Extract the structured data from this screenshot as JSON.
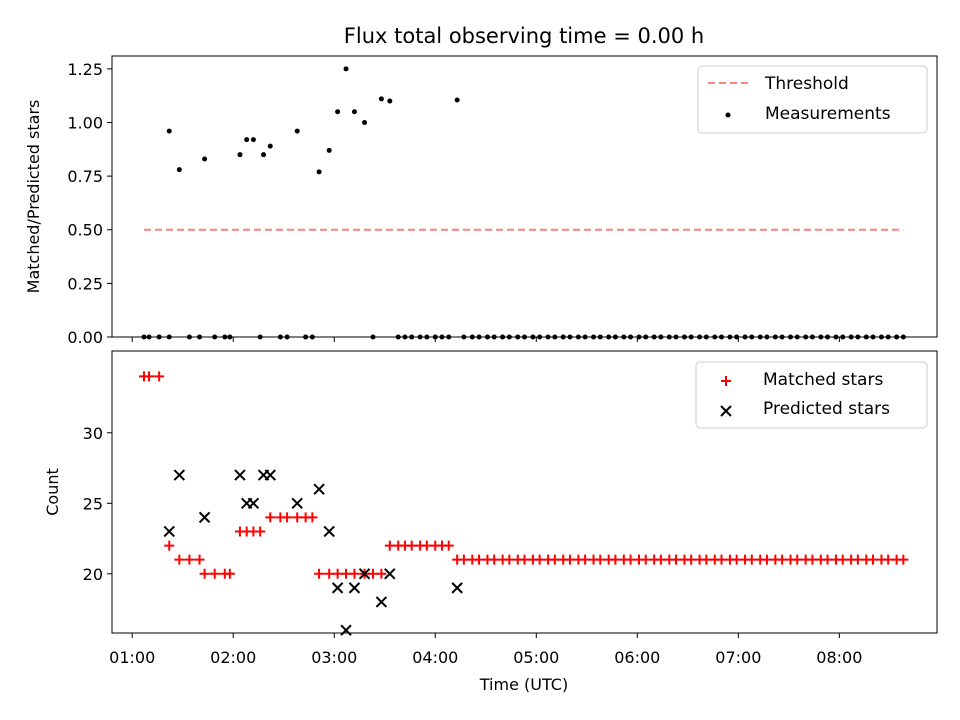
{
  "figure": {
    "title": "Flux total observing time = 0.00 h",
    "xlabel": "Time (UTC)"
  },
  "colors": {
    "threshold": "#ff8080",
    "measurement": "#000000",
    "matched": "#ff0000",
    "predicted": "#000000",
    "axes": "#000000",
    "background": "#ffffff"
  },
  "chart_data": [
    {
      "type": "scatter",
      "ylabel": "Matched/Predicted stars",
      "xlim": [
        "00:48",
        "08:58"
      ],
      "ylim": [
        0,
        1.31
      ],
      "yticks": [
        0.0,
        0.25,
        0.5,
        0.75,
        1.0,
        1.25
      ],
      "grid": false,
      "legend_position": "upper right",
      "threshold": {
        "name": "Threshold",
        "value": 0.5,
        "x_range": [
          "01:07",
          "08:38"
        ],
        "style": "dashed"
      },
      "series": [
        {
          "name": "Measurements",
          "marker": "dot",
          "points": [
            [
              "01:07",
              0
            ],
            [
              "01:10",
              0
            ],
            [
              "01:16",
              0
            ],
            [
              "01:22",
              0
            ],
            [
              "01:22",
              0.96
            ],
            [
              "01:28",
              0.78
            ],
            [
              "01:34",
              0
            ],
            [
              "01:40",
              0
            ],
            [
              "01:43",
              0.83
            ],
            [
              "01:49",
              0
            ],
            [
              "01:55",
              0
            ],
            [
              "01:58",
              0
            ],
            [
              "02:04",
              0.85
            ],
            [
              "02:08",
              0.92
            ],
            [
              "02:12",
              0.92
            ],
            [
              "02:16",
              0
            ],
            [
              "02:18",
              0.85
            ],
            [
              "02:22",
              0.89
            ],
            [
              "02:28",
              0
            ],
            [
              "02:32",
              0
            ],
            [
              "02:38",
              0.96
            ],
            [
              "02:43",
              0
            ],
            [
              "02:47",
              0
            ],
            [
              "02:51",
              0.77
            ],
            [
              "02:57",
              0.87
            ],
            [
              "03:02",
              1.05
            ],
            [
              "03:07",
              1.25
            ],
            [
              "03:12",
              1.05
            ],
            [
              "03:18",
              1.0
            ],
            [
              "03:23",
              0
            ],
            [
              "03:28",
              1.11
            ],
            [
              "03:33",
              1.1
            ],
            [
              "03:38",
              0
            ],
            [
              "03:42",
              0
            ],
            [
              "03:46",
              0
            ],
            [
              "03:51",
              0
            ],
            [
              "03:55",
              0
            ],
            [
              "04:00",
              0
            ],
            [
              "04:04",
              0
            ],
            [
              "04:08",
              0
            ],
            [
              "04:13",
              1.105
            ],
            [
              "04:17",
              0
            ],
            [
              "04:22",
              0
            ],
            [
              "04:26",
              0
            ],
            [
              "04:31",
              0
            ],
            [
              "04:35",
              0
            ],
            [
              "04:40",
              0
            ],
            [
              "04:44",
              0
            ],
            [
              "04:49",
              0
            ],
            [
              "04:53",
              0
            ],
            [
              "04:58",
              0
            ],
            [
              "05:02",
              0
            ],
            [
              "05:07",
              0
            ],
            [
              "05:11",
              0
            ],
            [
              "05:16",
              0
            ],
            [
              "05:20",
              0
            ],
            [
              "05:25",
              0
            ],
            [
              "05:29",
              0
            ],
            [
              "05:34",
              0
            ],
            [
              "05:38",
              0
            ],
            [
              "05:43",
              0
            ],
            [
              "05:47",
              0
            ],
            [
              "05:52",
              0
            ],
            [
              "05:56",
              0
            ],
            [
              "06:01",
              0
            ],
            [
              "06:05",
              0
            ],
            [
              "06:10",
              0
            ],
            [
              "06:14",
              0
            ],
            [
              "06:19",
              0
            ],
            [
              "06:23",
              0
            ],
            [
              "06:28",
              0
            ],
            [
              "06:32",
              0
            ],
            [
              "06:37",
              0
            ],
            [
              "06:41",
              0
            ],
            [
              "06:46",
              0
            ],
            [
              "06:50",
              0
            ],
            [
              "06:55",
              0
            ],
            [
              "06:59",
              0
            ],
            [
              "07:04",
              0
            ],
            [
              "07:08",
              0
            ],
            [
              "07:13",
              0
            ],
            [
              "07:17",
              0
            ],
            [
              "07:22",
              0
            ],
            [
              "07:26",
              0
            ],
            [
              "07:31",
              0
            ],
            [
              "07:35",
              0
            ],
            [
              "07:40",
              0
            ],
            [
              "07:44",
              0
            ],
            [
              "07:49",
              0
            ],
            [
              "07:53",
              0
            ],
            [
              "07:58",
              0
            ],
            [
              "08:02",
              0
            ],
            [
              "08:07",
              0
            ],
            [
              "08:11",
              0
            ],
            [
              "08:16",
              0
            ],
            [
              "08:20",
              0
            ],
            [
              "08:25",
              0
            ],
            [
              "08:29",
              0
            ],
            [
              "08:34",
              0
            ],
            [
              "08:38",
              0
            ]
          ]
        }
      ]
    },
    {
      "type": "scatter",
      "ylabel": "Count",
      "xlabel": "Time (UTC)",
      "xlim": [
        "00:48",
        "08:58"
      ],
      "ylim": [
        15.8,
        35.8
      ],
      "yticks": [
        20,
        25,
        30
      ],
      "xticks": [
        "01:00",
        "02:00",
        "03:00",
        "04:00",
        "05:00",
        "06:00",
        "07:00",
        "08:00"
      ],
      "grid": false,
      "legend_position": "upper right",
      "series": [
        {
          "name": "Matched stars",
          "marker": "plus",
          "points": [
            [
              "01:07",
              34
            ],
            [
              "01:10",
              34
            ],
            [
              "01:16",
              34
            ],
            [
              "01:22",
              22
            ],
            [
              "01:28",
              21
            ],
            [
              "01:34",
              21
            ],
            [
              "01:40",
              21
            ],
            [
              "01:43",
              20
            ],
            [
              "01:49",
              20
            ],
            [
              "01:55",
              20
            ],
            [
              "01:58",
              20
            ],
            [
              "02:04",
              23
            ],
            [
              "02:08",
              23
            ],
            [
              "02:12",
              23
            ],
            [
              "02:16",
              23
            ],
            [
              "02:22",
              24
            ],
            [
              "02:28",
              24
            ],
            [
              "02:32",
              24
            ],
            [
              "02:38",
              24
            ],
            [
              "02:43",
              24
            ],
            [
              "02:47",
              24
            ],
            [
              "02:51",
              20
            ],
            [
              "02:57",
              20
            ],
            [
              "03:02",
              20
            ],
            [
              "03:07",
              20
            ],
            [
              "03:12",
              20
            ],
            [
              "03:18",
              20
            ],
            [
              "03:23",
              20
            ],
            [
              "03:28",
              20
            ],
            [
              "03:33",
              22
            ],
            [
              "03:38",
              22
            ],
            [
              "03:42",
              22
            ],
            [
              "03:46",
              22
            ],
            [
              "03:51",
              22
            ],
            [
              "03:55",
              22
            ],
            [
              "04:00",
              22
            ],
            [
              "04:04",
              22
            ],
            [
              "04:08",
              22
            ],
            [
              "04:13",
              21
            ],
            [
              "04:17",
              21
            ],
            [
              "04:22",
              21
            ],
            [
              "04:26",
              21
            ],
            [
              "04:31",
              21
            ],
            [
              "04:35",
              21
            ],
            [
              "04:40",
              21
            ],
            [
              "04:44",
              21
            ],
            [
              "04:49",
              21
            ],
            [
              "04:53",
              21
            ],
            [
              "04:58",
              21
            ],
            [
              "05:02",
              21
            ],
            [
              "05:07",
              21
            ],
            [
              "05:11",
              21
            ],
            [
              "05:16",
              21
            ],
            [
              "05:20",
              21
            ],
            [
              "05:25",
              21
            ],
            [
              "05:29",
              21
            ],
            [
              "05:34",
              21
            ],
            [
              "05:38",
              21
            ],
            [
              "05:43",
              21
            ],
            [
              "05:47",
              21
            ],
            [
              "05:52",
              21
            ],
            [
              "05:56",
              21
            ],
            [
              "06:01",
              21
            ],
            [
              "06:05",
              21
            ],
            [
              "06:10",
              21
            ],
            [
              "06:14",
              21
            ],
            [
              "06:19",
              21
            ],
            [
              "06:23",
              21
            ],
            [
              "06:28",
              21
            ],
            [
              "06:32",
              21
            ],
            [
              "06:37",
              21
            ],
            [
              "06:41",
              21
            ],
            [
              "06:46",
              21
            ],
            [
              "06:50",
              21
            ],
            [
              "06:55",
              21
            ],
            [
              "06:59",
              21
            ],
            [
              "07:04",
              21
            ],
            [
              "07:08",
              21
            ],
            [
              "07:13",
              21
            ],
            [
              "07:17",
              21
            ],
            [
              "07:22",
              21
            ],
            [
              "07:26",
              21
            ],
            [
              "07:31",
              21
            ],
            [
              "07:35",
              21
            ],
            [
              "07:40",
              21
            ],
            [
              "07:44",
              21
            ],
            [
              "07:49",
              21
            ],
            [
              "07:53",
              21
            ],
            [
              "07:58",
              21
            ],
            [
              "08:02",
              21
            ],
            [
              "08:07",
              21
            ],
            [
              "08:11",
              21
            ],
            [
              "08:16",
              21
            ],
            [
              "08:20",
              21
            ],
            [
              "08:25",
              21
            ],
            [
              "08:29",
              21
            ],
            [
              "08:34",
              21
            ],
            [
              "08:38",
              21
            ]
          ]
        },
        {
          "name": "Predicted stars",
          "marker": "x",
          "points": [
            [
              "01:22",
              23
            ],
            [
              "01:28",
              27
            ],
            [
              "01:43",
              24
            ],
            [
              "02:04",
              27
            ],
            [
              "02:08",
              25
            ],
            [
              "02:12",
              25
            ],
            [
              "02:18",
              27
            ],
            [
              "02:22",
              27
            ],
            [
              "02:38",
              25
            ],
            [
              "02:51",
              26
            ],
            [
              "02:57",
              23
            ],
            [
              "03:02",
              19
            ],
            [
              "03:07",
              16
            ],
            [
              "03:12",
              19
            ],
            [
              "03:18",
              20
            ],
            [
              "03:28",
              18
            ],
            [
              "03:33",
              20
            ],
            [
              "04:13",
              19
            ]
          ]
        }
      ]
    }
  ]
}
